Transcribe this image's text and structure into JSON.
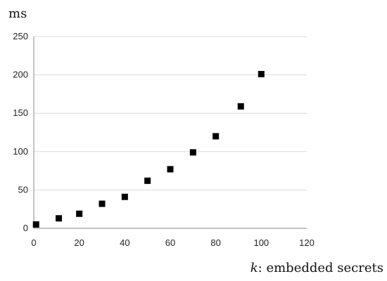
{
  "chart_data": {
    "type": "scatter",
    "ylabel": "ms",
    "xlabel_var": "k",
    "xlabel_rest": ": embedded secrets",
    "xlim": [
      0,
      120
    ],
    "ylim": [
      0,
      250
    ],
    "x_ticks": [
      0,
      20,
      40,
      60,
      80,
      100,
      120
    ],
    "y_ticks": [
      0,
      50,
      100,
      150,
      200,
      250
    ],
    "grid": "horizontal",
    "legend": "none",
    "marker": "square",
    "marker_color": "#000000",
    "grid_color": "#d9d9d9",
    "series": [
      {
        "x": [
          1,
          11,
          20,
          30,
          40,
          50,
          60,
          70,
          80,
          91,
          100
        ],
        "y": [
          5,
          13,
          19,
          32,
          41,
          62,
          77,
          99,
          120,
          159,
          201
        ]
      }
    ]
  }
}
